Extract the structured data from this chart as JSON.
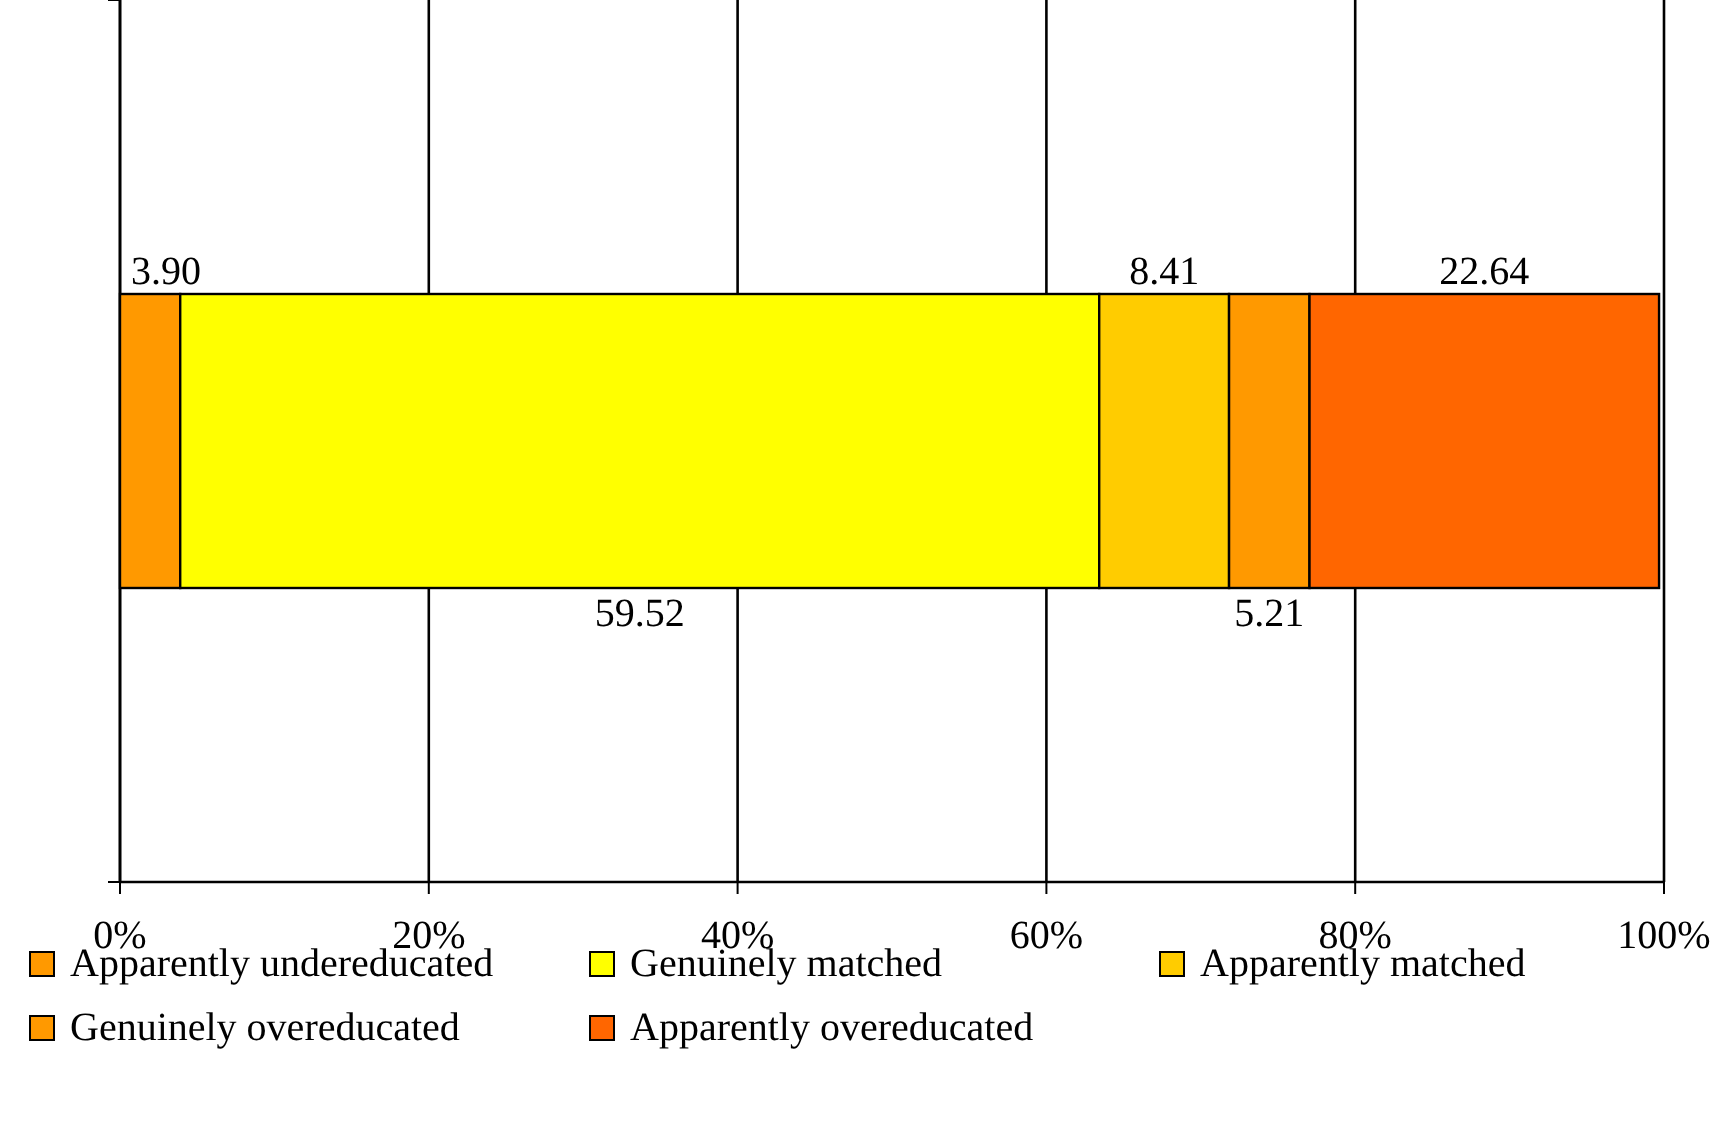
{
  "chart_data": {
    "type": "bar",
    "orientation": "horizontal",
    "stacked": true,
    "categories": [
      null
    ],
    "series": [
      {
        "name": "Apparently undereducated",
        "color": "#ff9900",
        "values": [
          3.9
        ],
        "value_labels": [
          "3.90"
        ]
      },
      {
        "name": "Genuinely matched",
        "color": "#ffff00",
        "values": [
          59.52
        ],
        "value_labels": [
          "59.52"
        ]
      },
      {
        "name": "Apparently matched",
        "color": "#ffcc00",
        "values": [
          8.41
        ],
        "value_labels": [
          "8.41"
        ]
      },
      {
        "name": "Genuinely overeducated",
        "color": "#ff9900",
        "values": [
          5.21
        ],
        "value_labels": [
          "5.21"
        ]
      },
      {
        "name": "Apparently overeducated",
        "color": "#ff6600",
        "values": [
          22.64
        ],
        "value_labels": [
          "22.64"
        ]
      }
    ],
    "xlim": [
      0,
      100
    ],
    "xticks": [
      {
        "value": 0,
        "label": "0%"
      },
      {
        "value": 20,
        "label": "20%"
      },
      {
        "value": 40,
        "label": "40%"
      },
      {
        "value": 60,
        "label": "60%"
      },
      {
        "value": 80,
        "label": "80%"
      },
      {
        "value": 100,
        "label": "100%"
      }
    ],
    "grid": "x",
    "legend": "bottom"
  }
}
